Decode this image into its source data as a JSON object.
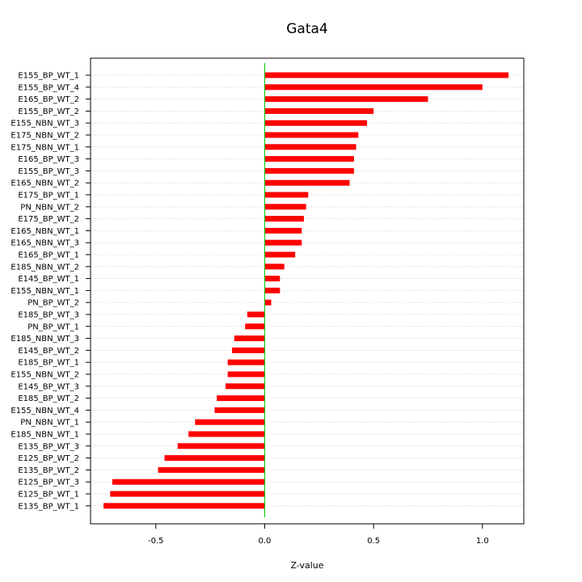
{
  "chart_data": {
    "type": "bar",
    "orientation": "horizontal",
    "title": "Gata4",
    "xlabel": "Z-value",
    "ylabel": "",
    "xlim": [
      -0.8,
      1.19
    ],
    "xticks": [
      -0.5,
      0.0,
      0.5,
      1.0
    ],
    "xtick_labels": [
      "-0.5",
      "0.0",
      "0.5",
      "1.0"
    ],
    "grid": "horizontal dotted",
    "bar_color": "#ff0000",
    "zero_line_color": "#00cc00",
    "categories": [
      "E155_BP_WT_1",
      "E155_BP_WT_4",
      "E165_BP_WT_2",
      "E155_BP_WT_2",
      "E155_NBN_WT_3",
      "E175_NBN_WT_2",
      "E175_NBN_WT_1",
      "E165_BP_WT_3",
      "E155_BP_WT_3",
      "E165_NBN_WT_2",
      "E175_BP_WT_1",
      "PN_NBN_WT_2",
      "E175_BP_WT_2",
      "E165_NBN_WT_1",
      "E165_NBN_WT_3",
      "E165_BP_WT_1",
      "E185_NBN_WT_2",
      "E145_BP_WT_1",
      "E155_NBN_WT_1",
      "PN_BP_WT_2",
      "E185_BP_WT_3",
      "PN_BP_WT_1",
      "E185_NBN_WT_3",
      "E145_BP_WT_2",
      "E185_BP_WT_1",
      "E155_NBN_WT_2",
      "E145_BP_WT_3",
      "E185_BP_WT_2",
      "E155_NBN_WT_4",
      "PN_NBN_WT_1",
      "E185_NBN_WT_1",
      "E135_BP_WT_3",
      "E125_BP_WT_2",
      "E135_BP_WT_2",
      "E125_BP_WT_3",
      "E125_BP_WT_1",
      "E135_BP_WT_1"
    ],
    "values": [
      1.12,
      1.0,
      0.75,
      0.5,
      0.47,
      0.43,
      0.42,
      0.41,
      0.41,
      0.39,
      0.2,
      0.19,
      0.18,
      0.17,
      0.17,
      0.14,
      0.09,
      0.07,
      0.07,
      0.03,
      -0.08,
      -0.09,
      -0.14,
      -0.15,
      -0.17,
      -0.17,
      -0.18,
      -0.22,
      -0.23,
      -0.32,
      -0.35,
      -0.4,
      -0.46,
      -0.49,
      -0.7,
      -0.71,
      -0.74
    ]
  }
}
